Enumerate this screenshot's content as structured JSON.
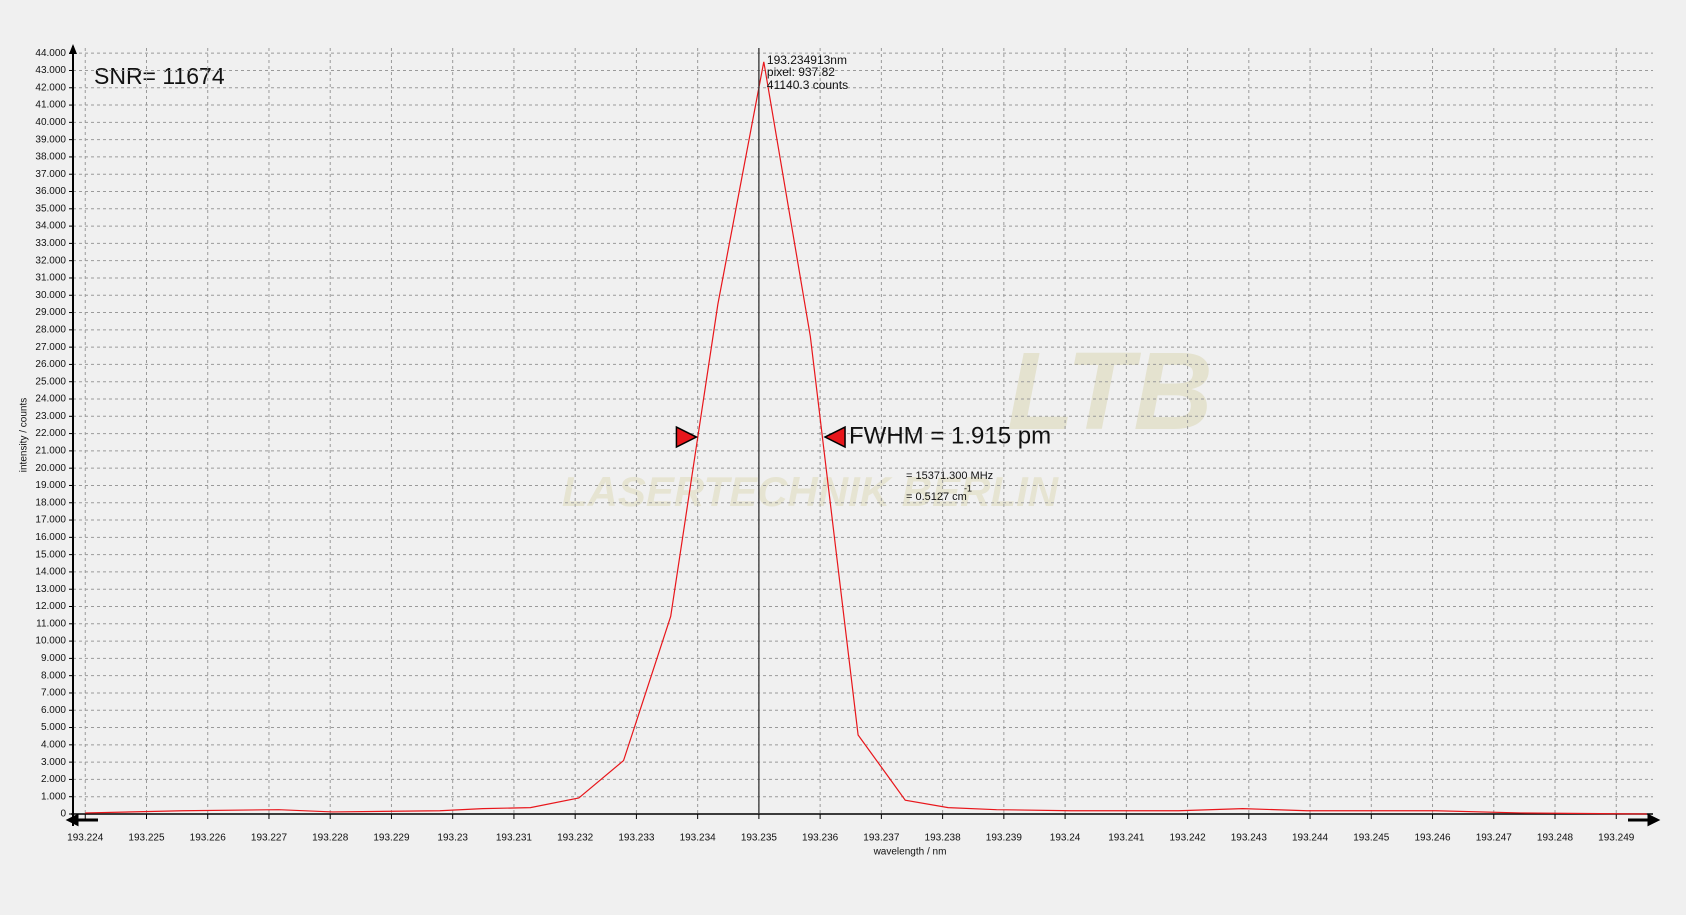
{
  "chart_data": {
    "type": "line",
    "x_label": "wavelength / nm",
    "y_label": "intensity / counts",
    "color": "#e8161b",
    "x": [
      193.224,
      193.22559,
      193.22716,
      193.22804,
      193.22979,
      193.23049,
      193.23127,
      193.23206,
      193.23279,
      193.23356,
      193.23433,
      193.23508,
      193.23584,
      193.23662,
      193.23739,
      193.23809,
      193.23888,
      193.2401,
      193.24185,
      193.2429,
      193.24395,
      193.24605,
      193.24744,
      193.2495
    ],
    "values": [
      60,
      190,
      250,
      120,
      190,
      310,
      370,
      930,
      3090,
      11430,
      29480,
      43500,
      27620,
      4570,
      800,
      370,
      250,
      190,
      190,
      310,
      190,
      190,
      60,
      0
    ],
    "xlim": [
      193.2238,
      193.2496
    ],
    "ylim": [
      0,
      44300
    ],
    "xticks": [
      193.224,
      193.225,
      193.226,
      193.227,
      193.228,
      193.229,
      193.23,
      193.231,
      193.232,
      193.233,
      193.234,
      193.235,
      193.236,
      193.237,
      193.238,
      193.239,
      193.24,
      193.241,
      193.242,
      193.243,
      193.244,
      193.245,
      193.246,
      193.247,
      193.248,
      193.249
    ],
    "yticks": [
      0,
      {
        "value": 1000,
        "label": "1.000"
      },
      {
        "value": 2000,
        "label": "2.000"
      },
      {
        "value": 3000,
        "label": "3.000"
      },
      {
        "value": 4000,
        "label": "4.000"
      },
      {
        "value": 5000,
        "label": "5.000"
      },
      {
        "value": 6000,
        "label": "6.000"
      },
      {
        "value": 7000,
        "label": "7.000"
      },
      {
        "value": 8000,
        "label": "8.000"
      },
      {
        "value": 9000,
        "label": "9.000"
      },
      {
        "value": 10000,
        "label": "10.000"
      },
      {
        "value": 11000,
        "label": "11.000"
      },
      {
        "value": 12000,
        "label": "12.000"
      },
      {
        "value": 13000,
        "label": "13.000"
      },
      {
        "value": 14000,
        "label": "14.000"
      },
      {
        "value": 15000,
        "label": "15.000"
      },
      {
        "value": 16000,
        "label": "16.000"
      },
      {
        "value": 17000,
        "label": "17.000"
      },
      {
        "value": 18000,
        "label": "18.000"
      },
      {
        "value": 19000,
        "label": "19.000"
      },
      {
        "value": 20000,
        "label": "20.000"
      },
      {
        "value": 21000,
        "label": "21.000"
      },
      {
        "value": 22000,
        "label": "22.000"
      },
      {
        "value": 23000,
        "label": "23.000"
      },
      {
        "value": 24000,
        "label": "24.000"
      },
      {
        "value": 25000,
        "label": "25.000"
      },
      {
        "value": 26000,
        "label": "26.000"
      },
      {
        "value": 27000,
        "label": "27.000"
      },
      {
        "value": 28000,
        "label": "28.000"
      },
      {
        "value": 29000,
        "label": "29.000"
      },
      {
        "value": 30000,
        "label": "30.000"
      },
      {
        "value": 31000,
        "label": "31.000"
      },
      {
        "value": 32000,
        "label": "32.000"
      },
      {
        "value": 33000,
        "label": "33.000"
      },
      {
        "value": 34000,
        "label": "34.000"
      },
      {
        "value": 35000,
        "label": "35.000"
      },
      {
        "value": 36000,
        "label": "36.000"
      },
      {
        "value": 37000,
        "label": "37.000"
      },
      {
        "value": 38000,
        "label": "38.000"
      },
      {
        "value": 39000,
        "label": "39.000"
      },
      {
        "value": 40000,
        "label": "40.000"
      },
      {
        "value": 41000,
        "label": "41.000"
      },
      {
        "value": 42000,
        "label": "42.000"
      },
      {
        "value": 43000,
        "label": "43.000"
      },
      {
        "value": 44000,
        "label": "44.000"
      }
    ],
    "grid": true,
    "cursor_x": 193.235,
    "fwhm_markers": {
      "x": [
        193.23398,
        193.23608
      ],
      "y": 21800
    },
    "annotations": {
      "snr": "SNR= 11674",
      "cursor_wavelength": "193.234913nm",
      "cursor_pixel": "pixel:  937.82",
      "cursor_counts": "41140.3 counts",
      "fwhm": "FWHM = 1.915 pm",
      "fwhm_freq": "= 15371.300 MHz",
      "fwhm_wavenumber": "= 0.5127 cm",
      "fwhm_wavenumber_unit": "-1"
    },
    "watermark": [
      "LTB",
      "LASERTECHNIK BERLIN"
    ]
  }
}
